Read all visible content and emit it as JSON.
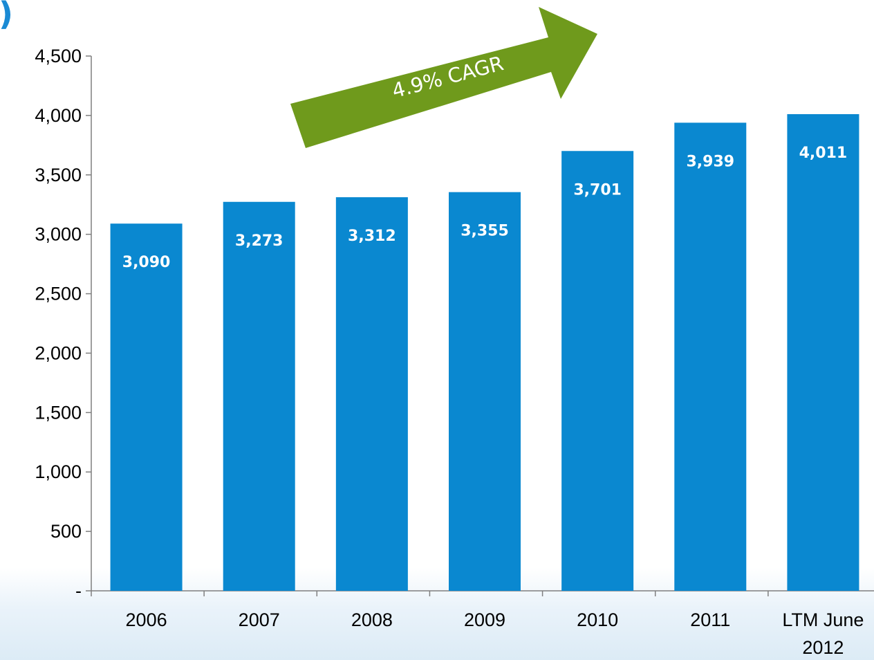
{
  "colors": {
    "bar": "#0a88d0",
    "arrow": "#6f9a1c",
    "axis": "#7f7f7f",
    "corner_mark": "#1a8ad4"
  },
  "corner_mark": ")",
  "annotation": {
    "text": "4.9% CAGR"
  },
  "chart_data": {
    "type": "bar",
    "title": "",
    "xlabel": "",
    "ylabel": "",
    "categories": [
      "2006",
      "2007",
      "2008",
      "2009",
      "2010",
      "2011",
      [
        "LTM June",
        "2012"
      ]
    ],
    "values": [
      3090,
      3273,
      3312,
      3355,
      3701,
      3939,
      4011
    ],
    "value_labels": [
      "3,090",
      "3,273",
      "3,312",
      "3,355",
      "3,701",
      "3,939",
      "4,011"
    ],
    "yticks": [
      0,
      500,
      1000,
      1500,
      2000,
      2500,
      3000,
      3500,
      4000,
      4500
    ],
    "ytick_labels": [
      "-",
      "500",
      "1,000",
      "1,500",
      "2,000",
      "2,500",
      "3,000",
      "3,500",
      "4,000",
      "4,500"
    ],
    "ylim": [
      0,
      4500
    ],
    "grid": false,
    "legend": "none"
  }
}
